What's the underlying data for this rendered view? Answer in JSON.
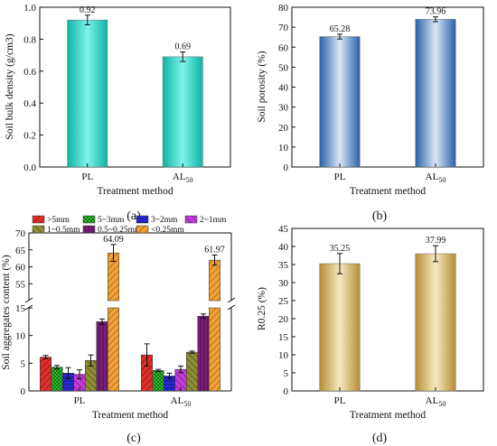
{
  "chart_data": [
    {
      "type": "bar",
      "panel": "(a)",
      "categories": [
        "PL",
        "AL50"
      ],
      "values": [
        0.92,
        0.69
      ],
      "errors": [
        0.03,
        0.03
      ],
      "data_labels": [
        "0.92",
        "0.69"
      ],
      "xlabel": "Treatment method",
      "ylabel": "Soil bulk density (g/cm3)",
      "ylim": [
        0,
        1.0
      ],
      "yticks": [
        "0.0",
        "0.2",
        "0.4",
        "0.6",
        "0.8",
        "1.0"
      ],
      "color": "#34d7c9"
    },
    {
      "type": "bar",
      "panel": "(b)",
      "categories": [
        "PL",
        "AL50"
      ],
      "values": [
        65.28,
        73.96
      ],
      "errors": [
        1.2,
        1.2
      ],
      "data_labels": [
        "65.28",
        "73.96"
      ],
      "xlabel": "Treatment method",
      "ylabel": "Soil porosity (%)",
      "ylim": [
        0,
        80
      ],
      "yticks": [
        "0",
        "10",
        "20",
        "30",
        "40",
        "50",
        "60",
        "70",
        "80"
      ],
      "color": "#4f86c4"
    },
    {
      "type": "bar",
      "panel": "(c)",
      "categories": [
        "PL",
        "AL50"
      ],
      "series": [
        {
          "name": ">5mm",
          "values": [
            6.1,
            6.5
          ],
          "errors": [
            0.3,
            2.0
          ],
          "color": "#e0302c"
        },
        {
          "name": "5~3mm",
          "values": [
            4.3,
            3.7
          ],
          "errors": [
            0.3,
            0.2
          ],
          "color": "#2fbf2f"
        },
        {
          "name": "3~2mm",
          "values": [
            3.2,
            2.7
          ],
          "errors": [
            1.0,
            0.5
          ],
          "color": "#2a2ad8"
        },
        {
          "name": "2~1mm",
          "values": [
            3.0,
            3.9
          ],
          "errors": [
            0.8,
            0.6
          ],
          "color": "#c03cd6"
        },
        {
          "name": "1~0.5mm",
          "values": [
            5.5,
            7.0
          ],
          "errors": [
            1.0,
            0.2
          ],
          "color": "#7d7d2a"
        },
        {
          "name": "0.5~0.25mm",
          "values": [
            12.5,
            13.5
          ],
          "errors": [
            0.5,
            0.4
          ],
          "color": "#7a2078"
        },
        {
          "name": "<0.25mm",
          "values": [
            64.09,
            61.97
          ],
          "errors": [
            2.5,
            1.5
          ],
          "color": "#e8962c"
        }
      ],
      "data_labels": [
        "64.09",
        "61.97"
      ],
      "xlabel": "Treatment method",
      "ylabel": "Soil aggregates content (%)",
      "ylim_lower": [
        0,
        15
      ],
      "ylim_upper": [
        50,
        70
      ],
      "yticks_lower": [
        "0",
        "5",
        "10",
        "15"
      ],
      "yticks_upper": [
        "55",
        "60",
        "65",
        "70"
      ]
    },
    {
      "type": "bar",
      "panel": "(d)",
      "categories": [
        "PL",
        "AL50"
      ],
      "values": [
        35.25,
        37.99
      ],
      "errors": [
        2.8,
        2.2
      ],
      "data_labels": [
        "35.25",
        "37.99"
      ],
      "xlabel": "Treatment method",
      "ylabel": "R0.25 (%)",
      "ylim": [
        0,
        45
      ],
      "yticks": [
        "0",
        "5",
        "10",
        "15",
        "20",
        "25",
        "30",
        "35",
        "40",
        "45"
      ],
      "color": "#d2b35c"
    }
  ]
}
